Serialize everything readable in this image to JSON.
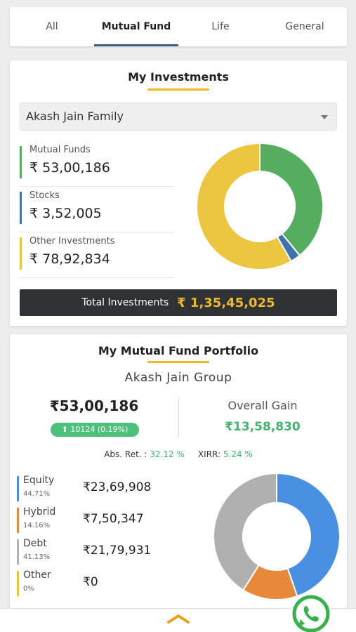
{
  "tabs": [
    {
      "label": "All"
    },
    {
      "label": "Mutual Fund"
    },
    {
      "label": "Life"
    },
    {
      "label": "General"
    }
  ],
  "active_tab": "Mutual Fund",
  "investments": {
    "title": "My Investments",
    "family_selector": "Akash Jain Family",
    "items": [
      {
        "label": "Mutual Funds",
        "value": "₹ 53,00,186",
        "color": "#55ad5f"
      },
      {
        "label": "Stocks",
        "value": "₹ 3,52,005",
        "color": "#3f73b0"
      },
      {
        "label": "Other Investments",
        "value": "₹ 78,92,834",
        "color": "#ecc63e"
      }
    ],
    "total_label": "Total Investments",
    "total_value": "₹ 1,35,45,025"
  },
  "portfolio": {
    "title": "My Mutual Fund Portfolio",
    "group": "Akash Jain Group",
    "amount": "₹53,00,186",
    "change": "⬆ 10124 (0.19%)",
    "gain_label": "Overall Gain",
    "gain_value": "₹13,58,830",
    "abs_ret_label": "Abs. Ret. :",
    "abs_ret_value": "32.12 %",
    "xirr_label": "XIRR:",
    "xirr_value": "5.24 %",
    "allocations": [
      {
        "name": "Equity",
        "pct": "44.71%",
        "value": "₹23,69,908",
        "color": "#4a90e2"
      },
      {
        "name": "Hybrid",
        "pct": "14.16%",
        "value": "₹7,50,347",
        "color": "#e8893a"
      },
      {
        "name": "Debt",
        "pct": "41.13%",
        "value": "₹21,79,931",
        "color": "#b0b0b0"
      },
      {
        "name": "Other",
        "pct": "0%",
        "value": "₹0",
        "color": "#ecc63e"
      }
    ]
  },
  "icons": {
    "scroll_up": "chevron-up-icon",
    "whatsapp": "whatsapp-icon"
  }
}
